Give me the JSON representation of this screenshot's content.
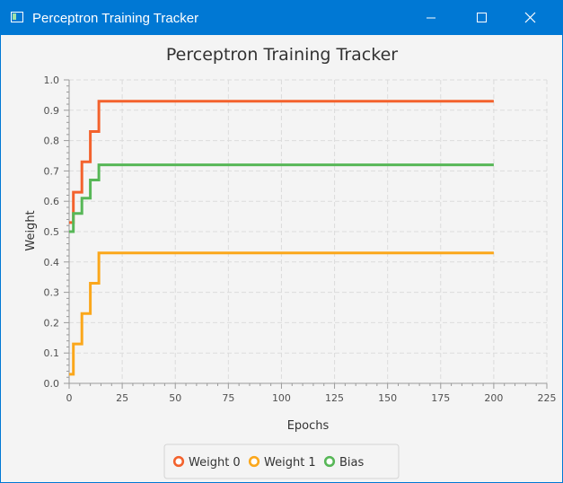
{
  "window": {
    "title": "Perceptron Training Tracker"
  },
  "chart_data": {
    "type": "line",
    "title": "Perceptron Training Tracker",
    "xlabel": "Epochs",
    "ylabel": "Weight",
    "xlim": [
      0,
      225
    ],
    "ylim": [
      0,
      1.0
    ],
    "x_ticks": [
      0,
      25,
      50,
      75,
      100,
      125,
      150,
      175,
      200,
      225
    ],
    "y_ticks": [
      0.0,
      0.1,
      0.2,
      0.3,
      0.4,
      0.5,
      0.6,
      0.7,
      0.8,
      0.9,
      1.0
    ],
    "x_tick_labels": [
      "0",
      "25",
      "50",
      "75",
      "100",
      "125",
      "150",
      "175",
      "200",
      "225"
    ],
    "y_tick_labels": [
      "0.0",
      "0.1",
      "0.2",
      "0.3",
      "0.4",
      "0.5",
      "0.6",
      "0.7",
      "0.8",
      "0.9",
      "1.0"
    ],
    "grid": true,
    "legend_position": "bottom",
    "series": [
      {
        "name": "Weight 0",
        "color": "#f3622d",
        "points": [
          [
            0,
            0.53
          ],
          [
            2,
            0.53
          ],
          [
            2,
            0.63
          ],
          [
            6,
            0.63
          ],
          [
            6,
            0.73
          ],
          [
            10,
            0.73
          ],
          [
            10,
            0.83
          ],
          [
            14,
            0.83
          ],
          [
            14,
            0.93
          ],
          [
            200,
            0.93
          ]
        ]
      },
      {
        "name": "Weight 1",
        "color": "#fba71b",
        "points": [
          [
            0,
            0.03
          ],
          [
            2,
            0.03
          ],
          [
            2,
            0.13
          ],
          [
            6,
            0.13
          ],
          [
            6,
            0.23
          ],
          [
            10,
            0.23
          ],
          [
            10,
            0.33
          ],
          [
            14,
            0.33
          ],
          [
            14,
            0.43
          ],
          [
            200,
            0.43
          ]
        ]
      },
      {
        "name": "Bias",
        "color": "#57b757",
        "points": [
          [
            0,
            0.5
          ],
          [
            2,
            0.5
          ],
          [
            2,
            0.56
          ],
          [
            6,
            0.56
          ],
          [
            6,
            0.61
          ],
          [
            10,
            0.61
          ],
          [
            10,
            0.67
          ],
          [
            14,
            0.67
          ],
          [
            14,
            0.72
          ],
          [
            200,
            0.72
          ]
        ]
      }
    ]
  }
}
